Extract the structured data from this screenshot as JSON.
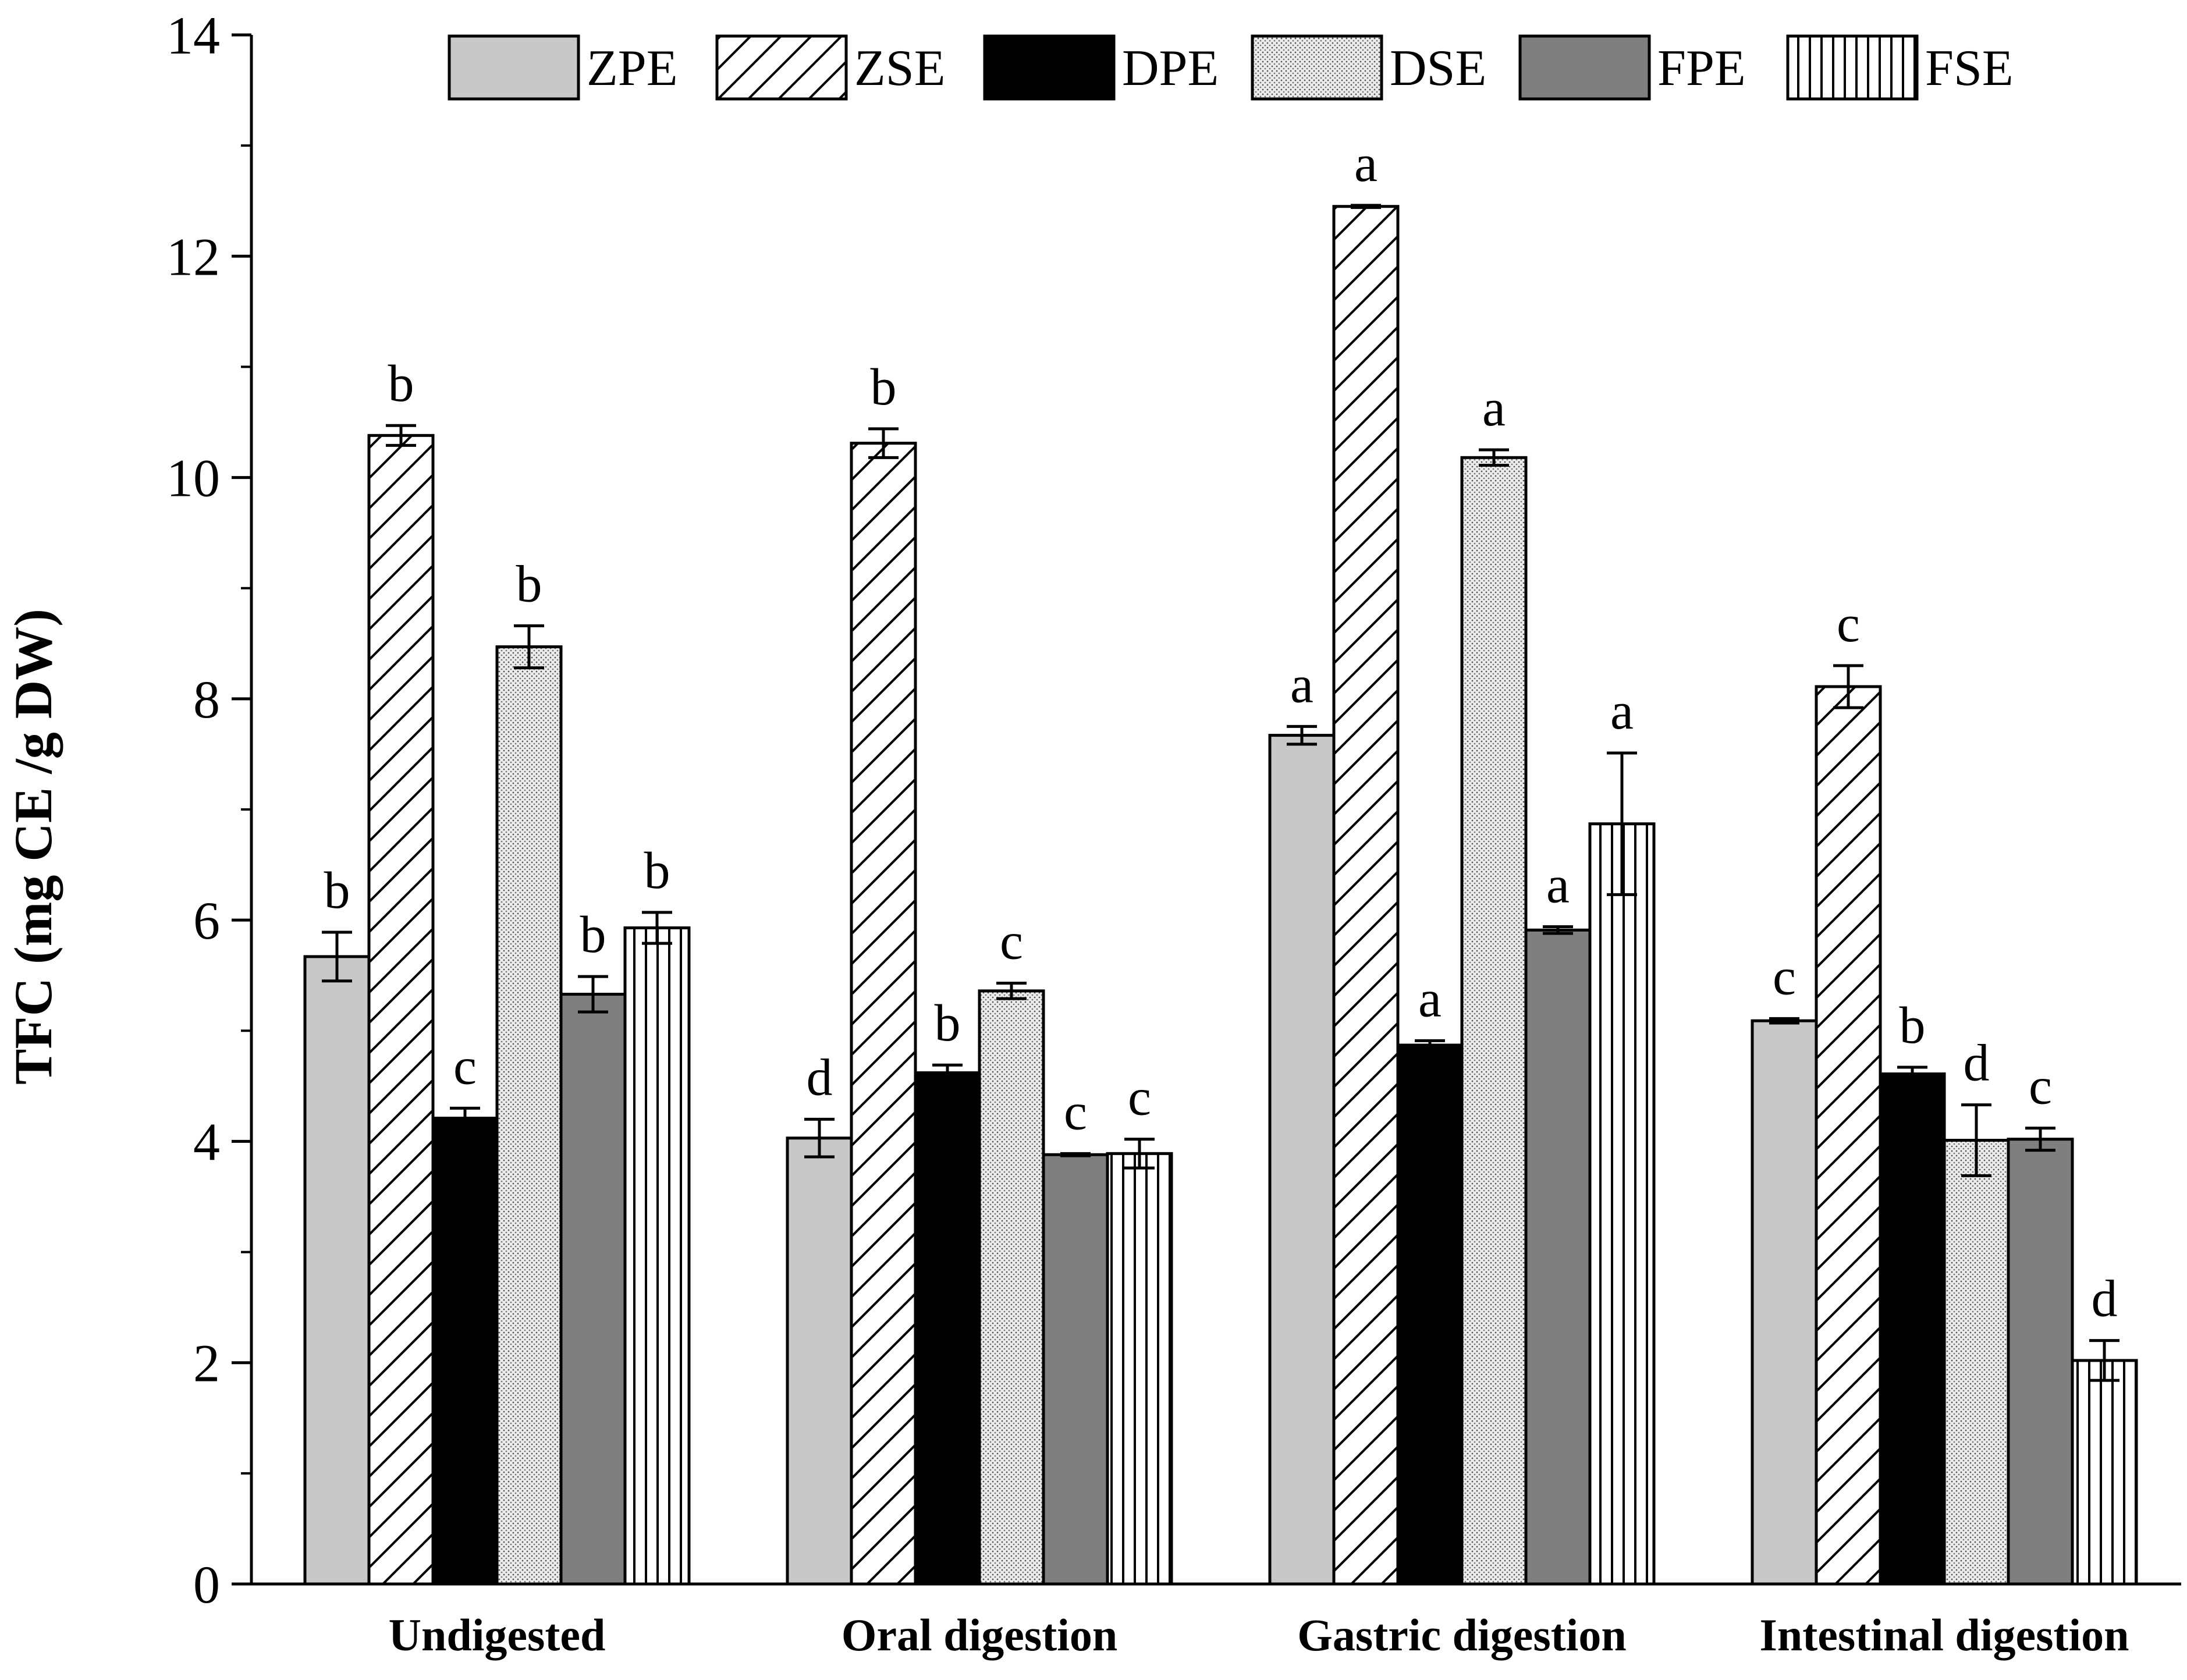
{
  "chart_data": {
    "type": "bar",
    "title": "",
    "xlabel": "",
    "ylabel": "TFC (mg CE /g DW)",
    "ylim": [
      0,
      14
    ],
    "yticks": [
      0,
      2,
      4,
      6,
      8,
      10,
      12,
      14
    ],
    "grid": false,
    "legend_position": "top",
    "categories": [
      "Undigested",
      "Oral digestion",
      "Gastric digestion",
      "Intestinal digestion"
    ],
    "series": [
      {
        "name": "ZPE",
        "pattern": "solid",
        "fill": "#c8c8c8",
        "values": [
          5.67,
          4.03,
          7.67,
          5.09
        ],
        "errors": [
          0.22,
          0.17,
          0.08,
          0.02
        ],
        "letters": [
          "b",
          "d",
          "a",
          "c"
        ]
      },
      {
        "name": "ZSE",
        "pattern": "diagonal",
        "fill": "#ffffff",
        "values": [
          10.38,
          10.31,
          12.45,
          8.11
        ],
        "errors": [
          0.09,
          0.13,
          0.01,
          0.19
        ],
        "letters": [
          "b",
          "b",
          "a",
          "c"
        ]
      },
      {
        "name": "DPE",
        "pattern": "solid",
        "fill": "#000000",
        "values": [
          4.21,
          4.62,
          4.87,
          4.61
        ],
        "errors": [
          0.09,
          0.07,
          0.04,
          0.06
        ],
        "letters": [
          "c",
          "b",
          "a",
          "b"
        ]
      },
      {
        "name": "DSE",
        "pattern": "dots",
        "fill": "#e0e0e0",
        "values": [
          8.47,
          5.36,
          10.18,
          4.01
        ],
        "errors": [
          0.19,
          0.07,
          0.07,
          0.32
        ],
        "letters": [
          "b",
          "c",
          "a",
          "d"
        ]
      },
      {
        "name": "FPE",
        "pattern": "solid",
        "fill": "#7f7f7f",
        "values": [
          5.33,
          3.88,
          5.91,
          4.02
        ],
        "errors": [
          0.16,
          0.01,
          0.03,
          0.1
        ],
        "letters": [
          "b",
          "c",
          "a",
          "c"
        ]
      },
      {
        "name": "FSE",
        "pattern": "vertical",
        "fill": "#ffffff",
        "values": [
          5.93,
          3.89,
          6.87,
          2.02
        ],
        "errors": [
          0.14,
          0.13,
          0.64,
          0.18
        ],
        "letters": [
          "b",
          "c",
          "a",
          "d"
        ]
      }
    ]
  }
}
